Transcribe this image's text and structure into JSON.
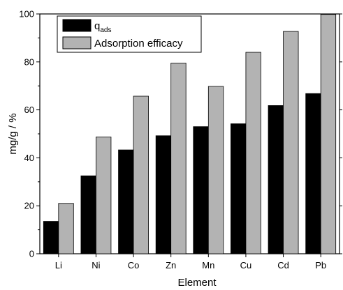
{
  "chart_data": {
    "type": "bar",
    "title": "",
    "xlabel": "Element",
    "ylabel": "mg/g / %",
    "categories": [
      "Li",
      "Ni",
      "Co",
      "Zn",
      "Mn",
      "Cu",
      "Cd",
      "Pb"
    ],
    "ylim": [
      0,
      100
    ],
    "yticks": [
      0,
      20,
      40,
      60,
      80,
      100
    ],
    "grid": false,
    "legend_position": "top-left",
    "series": [
      {
        "name": "q",
        "name_subscript": "ads",
        "color": "#000000",
        "values": [
          13.5,
          32.5,
          43.3,
          49.2,
          53.0,
          54.2,
          61.8,
          66.8
        ]
      },
      {
        "name": "Adsorption efficacy",
        "color": "#b3b3b3",
        "values": [
          21.0,
          48.7,
          65.7,
          79.5,
          69.8,
          84.0,
          92.7,
          99.8
        ]
      }
    ]
  }
}
